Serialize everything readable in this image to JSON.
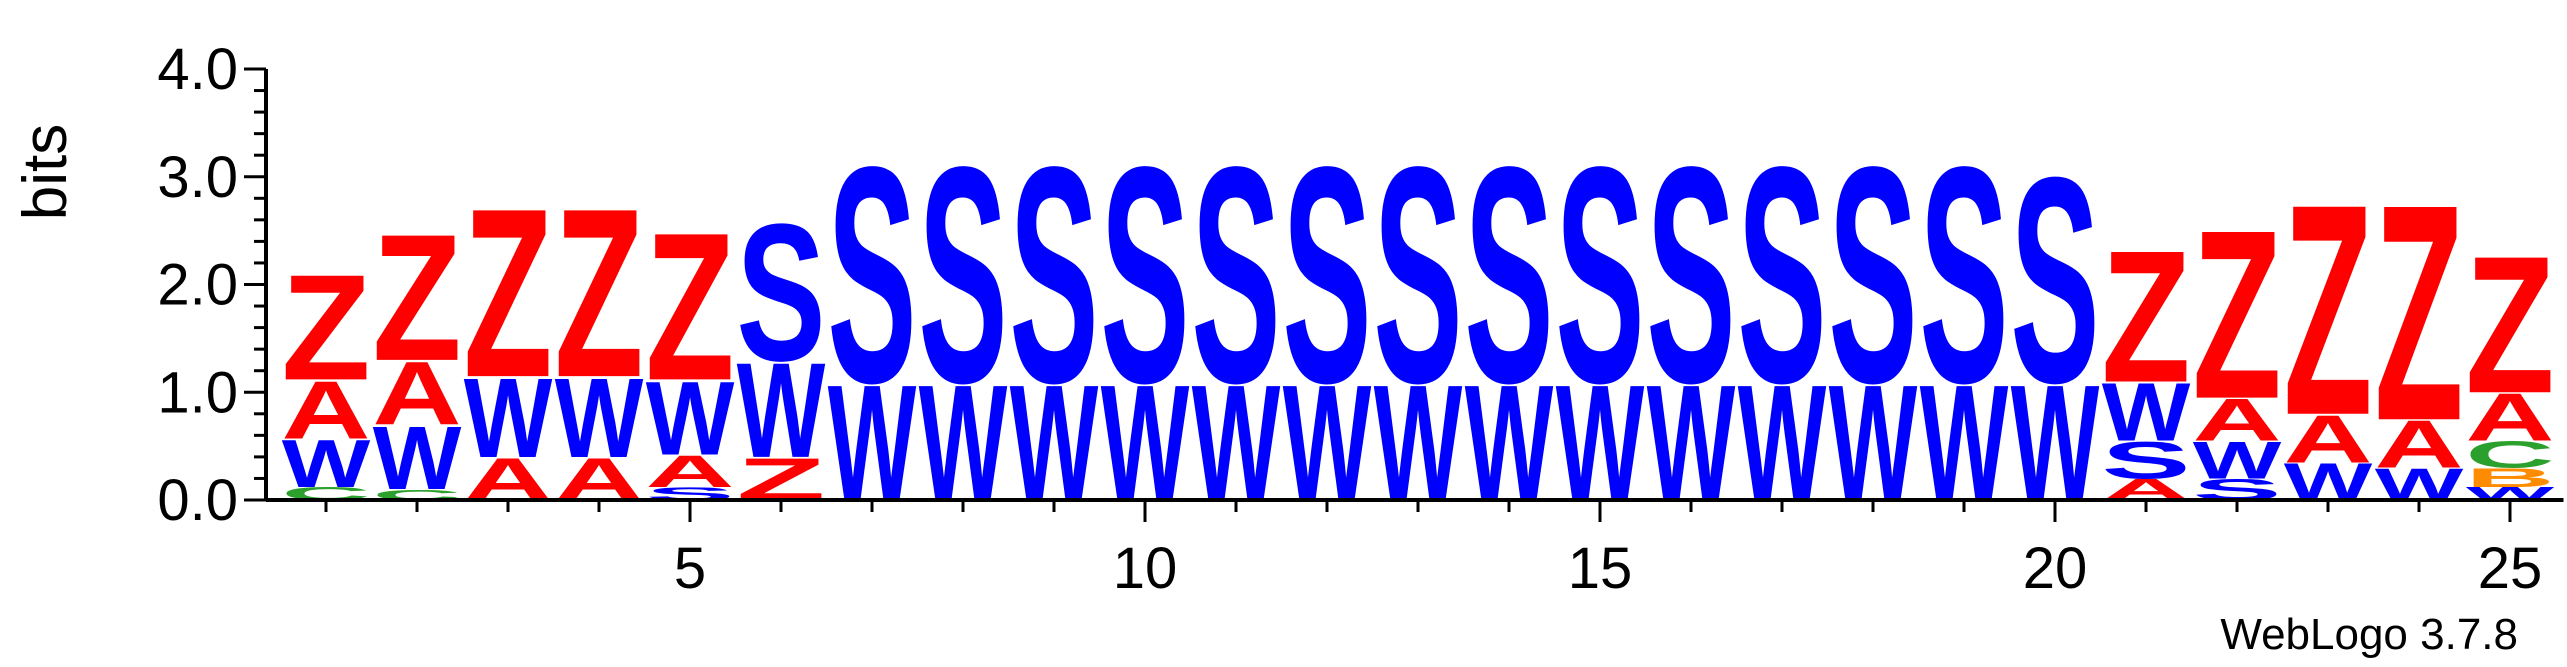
{
  "chart_data": {
    "type": "sequence-logo",
    "ylabel": "bits",
    "ylim": [
      0,
      4
    ],
    "y_ticks": [
      "0.0",
      "1.0",
      "2.0",
      "3.0",
      "4.0"
    ],
    "x_ticks": [
      5,
      10,
      15,
      20,
      25
    ],
    "positions": 25,
    "colors": {
      "Z": "#ff0000",
      "A": "#ff0000",
      "S": "#0000ff",
      "W": "#0000ff",
      "C": "#2ca02c",
      "B": "#ff8c00"
    },
    "columns": [
      {
        "pos": 1,
        "stack": [
          {
            "letter": "C",
            "bits": 0.12
          },
          {
            "letter": "W",
            "bits": 0.45
          },
          {
            "letter": "A",
            "bits": 0.55
          },
          {
            "letter": "Z",
            "bits": 1.0
          }
        ]
      },
      {
        "pos": 2,
        "stack": [
          {
            "letter": "C",
            "bits": 0.1
          },
          {
            "letter": "W",
            "bits": 0.6
          },
          {
            "letter": "A",
            "bits": 0.6
          },
          {
            "letter": "Z",
            "bits": 1.2
          }
        ]
      },
      {
        "pos": 3,
        "stack": [
          {
            "letter": "A",
            "bits": 0.4
          },
          {
            "letter": "W",
            "bits": 0.75
          },
          {
            "letter": "Z",
            "bits": 1.6
          }
        ]
      },
      {
        "pos": 4,
        "stack": [
          {
            "letter": "A",
            "bits": 0.4
          },
          {
            "letter": "W",
            "bits": 0.75
          },
          {
            "letter": "Z",
            "bits": 1.6
          }
        ]
      },
      {
        "pos": 5,
        "stack": [
          {
            "letter": "S",
            "bits": 0.12
          },
          {
            "letter": "A",
            "bits": 0.3
          },
          {
            "letter": "W",
            "bits": 0.7
          },
          {
            "letter": "Z",
            "bits": 1.4
          }
        ]
      },
      {
        "pos": 6,
        "stack": [
          {
            "letter": "Z",
            "bits": 0.4
          },
          {
            "letter": "W",
            "bits": 0.9
          },
          {
            "letter": "S",
            "bits": 1.3
          }
        ]
      },
      {
        "pos": 7,
        "stack": [
          {
            "letter": "W",
            "bits": 1.1
          },
          {
            "letter": "S",
            "bits": 2.05
          }
        ]
      },
      {
        "pos": 8,
        "stack": [
          {
            "letter": "W",
            "bits": 1.1
          },
          {
            "letter": "S",
            "bits": 2.05
          }
        ]
      },
      {
        "pos": 9,
        "stack": [
          {
            "letter": "W",
            "bits": 1.1
          },
          {
            "letter": "S",
            "bits": 2.05
          }
        ]
      },
      {
        "pos": 10,
        "stack": [
          {
            "letter": "W",
            "bits": 1.1
          },
          {
            "letter": "S",
            "bits": 2.05
          }
        ]
      },
      {
        "pos": 11,
        "stack": [
          {
            "letter": "W",
            "bits": 1.1
          },
          {
            "letter": "S",
            "bits": 2.05
          }
        ]
      },
      {
        "pos": 12,
        "stack": [
          {
            "letter": "W",
            "bits": 1.1
          },
          {
            "letter": "S",
            "bits": 2.05
          }
        ]
      },
      {
        "pos": 13,
        "stack": [
          {
            "letter": "W",
            "bits": 1.1
          },
          {
            "letter": "S",
            "bits": 2.05
          }
        ]
      },
      {
        "pos": 14,
        "stack": [
          {
            "letter": "W",
            "bits": 1.1
          },
          {
            "letter": "S",
            "bits": 2.05
          }
        ]
      },
      {
        "pos": 15,
        "stack": [
          {
            "letter": "W",
            "bits": 1.1
          },
          {
            "letter": "S",
            "bits": 2.05
          }
        ]
      },
      {
        "pos": 16,
        "stack": [
          {
            "letter": "W",
            "bits": 1.1
          },
          {
            "letter": "S",
            "bits": 2.05
          }
        ]
      },
      {
        "pos": 17,
        "stack": [
          {
            "letter": "W",
            "bits": 1.1
          },
          {
            "letter": "S",
            "bits": 2.05
          }
        ]
      },
      {
        "pos": 18,
        "stack": [
          {
            "letter": "W",
            "bits": 1.1
          },
          {
            "letter": "S",
            "bits": 2.05
          }
        ]
      },
      {
        "pos": 19,
        "stack": [
          {
            "letter": "W",
            "bits": 1.1
          },
          {
            "letter": "S",
            "bits": 2.05
          }
        ]
      },
      {
        "pos": 20,
        "stack": [
          {
            "letter": "W",
            "bits": 1.1
          },
          {
            "letter": "S",
            "bits": 1.95
          }
        ]
      },
      {
        "pos": 21,
        "stack": [
          {
            "letter": "A",
            "bits": 0.2
          },
          {
            "letter": "S",
            "bits": 0.35
          },
          {
            "letter": "W",
            "bits": 0.55
          },
          {
            "letter": "Z",
            "bits": 1.25
          }
        ]
      },
      {
        "pos": 22,
        "stack": [
          {
            "letter": "S",
            "bits": 0.2
          },
          {
            "letter": "W",
            "bits": 0.35
          },
          {
            "letter": "A",
            "bits": 0.4
          },
          {
            "letter": "Z",
            "bits": 1.6
          }
        ]
      },
      {
        "pos": 23,
        "stack": [
          {
            "letter": "W",
            "bits": 0.35
          },
          {
            "letter": "A",
            "bits": 0.45
          },
          {
            "letter": "Z",
            "bits": 2.0
          }
        ]
      },
      {
        "pos": 24,
        "stack": [
          {
            "letter": "W",
            "bits": 0.3
          },
          {
            "letter": "A",
            "bits": 0.45
          },
          {
            "letter": "Z",
            "bits": 2.05
          }
        ]
      },
      {
        "pos": 25,
        "stack": [
          {
            "letter": "W",
            "bits": 0.12
          },
          {
            "letter": "B",
            "bits": 0.18
          },
          {
            "letter": "C",
            "bits": 0.25
          },
          {
            "letter": "A",
            "bits": 0.45
          },
          {
            "letter": "Z",
            "bits": 1.3
          }
        ]
      }
    ]
  },
  "footer": {
    "credit": "WebLogo 3.7.8"
  }
}
